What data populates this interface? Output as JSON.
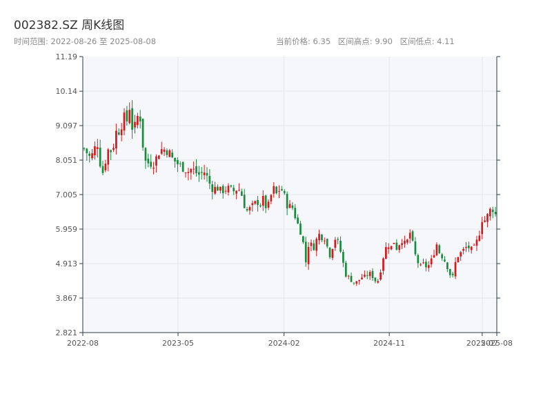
{
  "header": {
    "title": "002382.SZ 周K线图",
    "range_label": "时间范围: 2022-08-26 至 2025-08-08",
    "current_price": "当前价格: 6.35",
    "range_high": "区间高点: 9.90",
    "range_low": "区间低点: 4.11"
  },
  "colors": {
    "up": "#d7191c",
    "down": "#1a8a3c",
    "plot_bg": "#f5f7fa",
    "grid": "#e3e6ea",
    "axis": "#2b3a4a"
  },
  "chart_data": {
    "type": "candlestick",
    "title": "002382.SZ 周K线图",
    "xlabel": "",
    "ylabel": "",
    "ylim": [
      2.821,
      11.19
    ],
    "y_ticks": [
      "2.821",
      "3.867",
      "4.913",
      "5.959",
      "7.005",
      "8.051",
      "9.097",
      "10.14",
      "11.19"
    ],
    "x_range": [
      "2022-08-26",
      "2025-08-08"
    ],
    "x_ticks": [
      {
        "label": "2022-08",
        "date": "2022-08-26"
      },
      {
        "label": "2023-05",
        "date": "2023-05-01"
      },
      {
        "label": "2024-02",
        "date": "2024-02-01"
      },
      {
        "label": "2024-11",
        "date": "2024-11-01"
      },
      {
        "label": "2025-07",
        "date": "2025-07-01"
      },
      {
        "label": "2025-08",
        "date": "2025-08-08"
      }
    ],
    "grid": true,
    "close_path": [
      [
        0,
        8.4
      ],
      [
        2,
        8.1
      ],
      [
        4,
        8.6
      ],
      [
        5,
        7.9
      ],
      [
        6,
        7.6
      ],
      [
        7,
        8.4
      ],
      [
        8,
        8.3
      ],
      [
        9,
        8.5
      ],
      [
        10,
        9.0
      ],
      [
        11,
        8.9
      ],
      [
        12,
        9.4
      ],
      [
        13,
        9.2
      ],
      [
        14,
        9.7
      ],
      [
        15,
        8.8
      ],
      [
        16,
        9.3
      ],
      [
        17,
        9.5
      ],
      [
        18,
        8.5
      ],
      [
        19,
        7.9
      ],
      [
        20,
        8.0
      ],
      [
        21,
        7.9
      ],
      [
        22,
        8.1
      ],
      [
        23,
        8.3
      ],
      [
        24,
        8.4
      ],
      [
        26,
        8.3
      ],
      [
        27,
        8.1
      ],
      [
        29,
        7.9
      ],
      [
        32,
        7.7
      ],
      [
        33,
        7.8
      ],
      [
        35,
        7.6
      ],
      [
        37,
        7.7
      ],
      [
        39,
        7.2
      ],
      [
        41,
        7.2
      ],
      [
        42,
        7.1
      ],
      [
        44,
        7.2
      ],
      [
        46,
        7.1
      ],
      [
        47,
        7.2
      ],
      [
        48,
        7.1
      ],
      [
        49,
        6.7
      ],
      [
        50,
        6.5
      ],
      [
        51,
        6.6
      ],
      [
        53,
        6.8
      ],
      [
        54,
        6.7
      ],
      [
        55,
        6.9
      ],
      [
        56,
        6.5
      ],
      [
        57,
        6.9
      ],
      [
        58,
        7.2
      ],
      [
        59,
        7.0
      ],
      [
        60,
        7.2
      ],
      [
        61,
        7.1
      ],
      [
        62,
        6.7
      ],
      [
        64,
        6.6
      ],
      [
        65,
        6.2
      ],
      [
        66,
        6.0
      ],
      [
        67,
        5.6
      ],
      [
        68,
        4.9
      ],
      [
        69,
        5.7
      ],
      [
        70,
        5.3
      ],
      [
        71,
        5.6
      ],
      [
        72,
        5.8
      ],
      [
        73,
        5.7
      ],
      [
        74,
        5.7
      ],
      [
        75,
        5.1
      ],
      [
        76,
        5.4
      ],
      [
        77,
        5.7
      ],
      [
        78,
        5.5
      ],
      [
        79,
        5.1
      ],
      [
        80,
        4.6
      ],
      [
        81,
        4.5
      ],
      [
        82,
        4.4
      ],
      [
        83,
        4.3
      ],
      [
        84,
        4.4
      ],
      [
        85,
        4.5
      ],
      [
        86,
        4.5
      ],
      [
        87,
        4.6
      ],
      [
        88,
        4.6
      ],
      [
        89,
        4.4
      ],
      [
        90,
        4.4
      ],
      [
        91,
        4.8
      ],
      [
        92,
        5.3
      ],
      [
        93,
        5.5
      ],
      [
        94,
        5.4
      ],
      [
        95,
        5.6
      ],
      [
        96,
        5.3
      ],
      [
        97,
        5.7
      ],
      [
        98,
        5.5
      ],
      [
        99,
        5.6
      ],
      [
        100,
        5.9
      ],
      [
        101,
        5.3
      ],
      [
        102,
        5.0
      ],
      [
        103,
        4.8
      ],
      [
        104,
        4.9
      ],
      [
        105,
        4.8
      ],
      [
        106,
        4.9
      ],
      [
        107,
        5.2
      ],
      [
        108,
        5.5
      ],
      [
        109,
        5.2
      ],
      [
        110,
        5.1
      ],
      [
        111,
        4.9
      ],
      [
        112,
        4.6
      ],
      [
        113,
        4.5
      ],
      [
        114,
        5.1
      ],
      [
        115,
        5.2
      ],
      [
        116,
        5.3
      ],
      [
        117,
        5.4
      ],
      [
        118,
        5.4
      ],
      [
        119,
        5.3
      ],
      [
        120,
        5.5
      ],
      [
        121,
        5.8
      ],
      [
        122,
        6.3
      ],
      [
        123,
        6.2
      ],
      [
        124,
        6.5
      ],
      [
        125,
        6.6
      ],
      [
        126,
        6.4
      ]
    ],
    "seed": 7,
    "weeks": 155
  }
}
